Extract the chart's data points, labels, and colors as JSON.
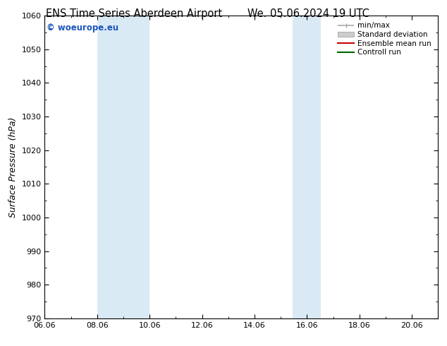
{
  "title_left": "ENS Time Series Aberdeen Airport",
  "title_right": "We. 05.06.2024 19 UTC",
  "ylabel": "Surface Pressure (hPa)",
  "ylim": [
    970,
    1060
  ],
  "yticks": [
    970,
    980,
    990,
    1000,
    1010,
    1020,
    1030,
    1040,
    1050,
    1060
  ],
  "xlim_start": 6.06,
  "xlim_end": 21.06,
  "xticks": [
    6.06,
    8.06,
    10.06,
    12.06,
    14.06,
    16.06,
    18.06,
    20.06
  ],
  "xtick_labels": [
    "06.06",
    "08.06",
    "10.06",
    "12.06",
    "14.06",
    "16.06",
    "18.06",
    "20.06"
  ],
  "shaded_bands": [
    {
      "x_start": 8.06,
      "x_end": 10.06
    },
    {
      "x_start": 15.5,
      "x_end": 16.6
    }
  ],
  "shaded_color": "#daeaf5",
  "watermark_text": "© woeurope.eu",
  "watermark_color": "#1a55bb",
  "legend_entries": [
    {
      "label": "min/max",
      "color": "#aaaaaa",
      "lw": 1.2
    },
    {
      "label": "Standard deviation",
      "color": "#cccccc",
      "lw": 6
    },
    {
      "label": "Ensemble mean run",
      "color": "#cc0000",
      "lw": 1.5
    },
    {
      "label": "Controll run",
      "color": "#006600",
      "lw": 1.5
    }
  ],
  "background_color": "#ffffff",
  "title_fontsize": 10.5,
  "tick_fontsize": 8,
  "ylabel_fontsize": 9
}
